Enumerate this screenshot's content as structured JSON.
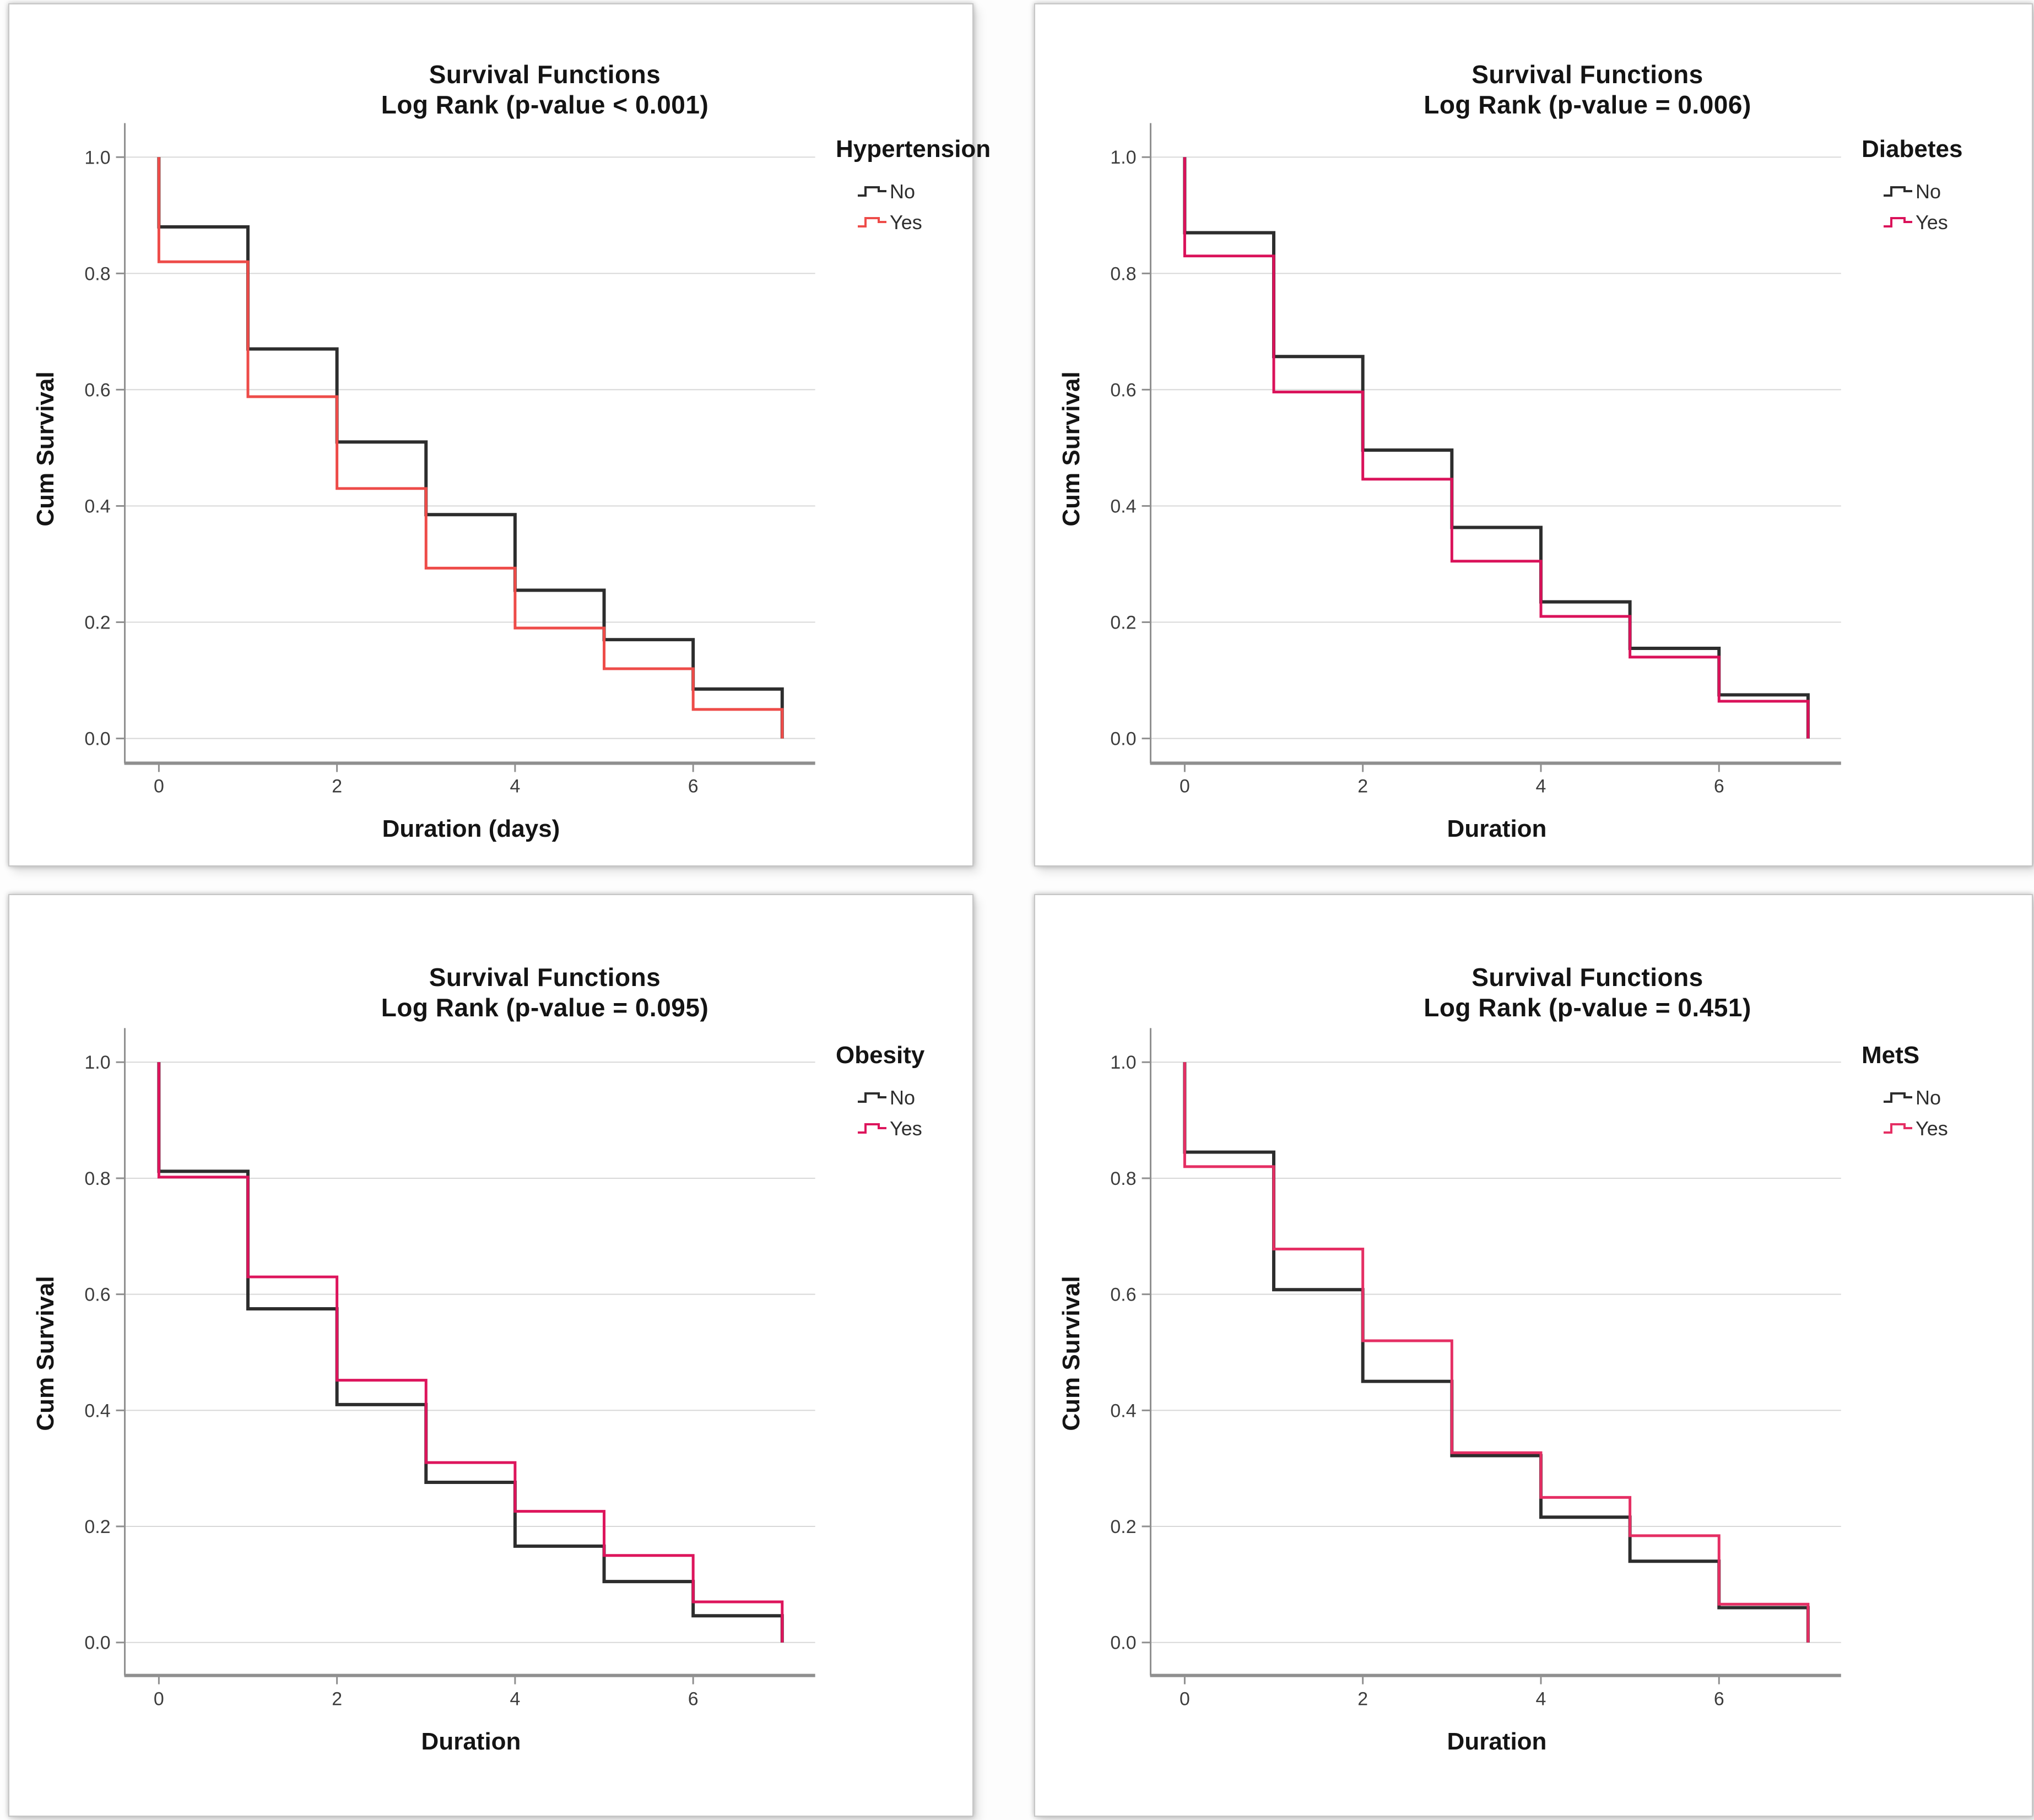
{
  "page": {
    "background": "#ffffff",
    "panel_background": "#ffffff",
    "panel_border_color": "#c6c6c6",
    "grid_line_color": "#d8d8d8",
    "axis_line_color": "#8f8f8f",
    "tick_label_color": "#3d3d3d"
  },
  "chart_data": [
    {
      "type": "line",
      "chart_kind": "kaplan-meier-step",
      "title": "Survival Functions",
      "subtitle": "Log Rank (p-value < 0.001)",
      "p_value_text": "< 0.001",
      "legend_title": "Hypertension",
      "xlabel": "Duration (days)",
      "ylabel": "Cum Survival",
      "x_ticks": [
        0,
        2,
        4,
        6
      ],
      "y_ticks": [
        1.0,
        0.8,
        0.6,
        0.4,
        0.2,
        0.0
      ],
      "xlim": [
        -0.45,
        7.7
      ],
      "ylim": [
        0.0,
        1.06
      ],
      "grid": "horizontal",
      "legend_position": "right",
      "event_times": [
        0,
        1,
        2,
        3,
        4,
        5,
        6,
        7
      ],
      "series": [
        {
          "name": "No",
          "color": "#2d2d2d",
          "start": 1.0,
          "values_after_drop": [
            0.88,
            0.67,
            0.51,
            0.385,
            0.255,
            0.17,
            0.085,
            0.0
          ]
        },
        {
          "name": "Yes",
          "color": "#ee4c49",
          "start": 1.0,
          "values_after_drop": [
            0.82,
            0.588,
            0.43,
            0.293,
            0.19,
            0.12,
            0.05,
            0.0
          ]
        }
      ]
    },
    {
      "type": "line",
      "chart_kind": "kaplan-meier-step",
      "title": "Survival Functions",
      "subtitle": "Log Rank (p-value = 0.006)",
      "p_value_text": "= 0.006",
      "legend_title": "Diabetes",
      "xlabel": "Duration",
      "ylabel": "Cum Survival",
      "x_ticks": [
        0,
        2,
        4,
        6
      ],
      "y_ticks": [
        1.0,
        0.8,
        0.6,
        0.4,
        0.2,
        0.0
      ],
      "xlim": [
        -0.45,
        7.7
      ],
      "ylim": [
        0.0,
        1.06
      ],
      "grid": "horizontal",
      "legend_position": "right",
      "event_times": [
        0,
        1,
        2,
        3,
        4,
        5,
        6,
        7
      ],
      "series": [
        {
          "name": "No",
          "color": "#2d2d2d",
          "start": 1.0,
          "values_after_drop": [
            0.87,
            0.657,
            0.496,
            0.363,
            0.235,
            0.155,
            0.075,
            0.0
          ]
        },
        {
          "name": "Yes",
          "color": "#da125a",
          "start": 1.0,
          "values_after_drop": [
            0.83,
            0.596,
            0.446,
            0.305,
            0.21,
            0.14,
            0.064,
            0.0
          ]
        }
      ]
    },
    {
      "type": "line",
      "chart_kind": "kaplan-meier-step",
      "title": "Survival Functions",
      "subtitle": "Log Rank (p-value = 0.095)",
      "p_value_text": "= 0.095",
      "legend_title": "Obesity",
      "xlabel": "Duration",
      "ylabel": "Cum Survival",
      "x_ticks": [
        0,
        2,
        4,
        6
      ],
      "y_ticks": [
        1.0,
        0.8,
        0.6,
        0.4,
        0.2,
        0.0
      ],
      "xlim": [
        -0.45,
        7.7
      ],
      "ylim": [
        0.0,
        1.06
      ],
      "grid": "horizontal",
      "legend_position": "right",
      "event_times": [
        0,
        1,
        2,
        3,
        4,
        5,
        6,
        7
      ],
      "series": [
        {
          "name": "No",
          "color": "#2d2d2d",
          "start": 1.0,
          "values_after_drop": [
            0.812,
            0.575,
            0.41,
            0.276,
            0.166,
            0.105,
            0.046,
            0.0
          ]
        },
        {
          "name": "Yes",
          "color": "#dd155c",
          "start": 1.0,
          "values_after_drop": [
            0.802,
            0.63,
            0.452,
            0.31,
            0.226,
            0.15,
            0.07,
            0.0
          ]
        }
      ]
    },
    {
      "type": "line",
      "chart_kind": "kaplan-meier-step",
      "title": "Survival Functions",
      "subtitle": "Log Rank (p-value = 0.451)",
      "p_value_text": "= 0.451",
      "legend_title": "MetS",
      "xlabel": "Duration",
      "ylabel": "Cum Survival",
      "x_ticks": [
        0,
        2,
        4,
        6
      ],
      "y_ticks": [
        1.0,
        0.8,
        0.6,
        0.4,
        0.2,
        0.0
      ],
      "xlim": [
        -0.45,
        7.7
      ],
      "ylim": [
        0.0,
        1.06
      ],
      "grid": "horizontal",
      "legend_position": "right",
      "event_times": [
        0,
        1,
        2,
        3,
        4,
        5,
        6,
        7
      ],
      "series": [
        {
          "name": "No",
          "color": "#2d2d2d",
          "start": 1.0,
          "values_after_drop": [
            0.845,
            0.608,
            0.45,
            0.322,
            0.216,
            0.14,
            0.06,
            0.0
          ]
        },
        {
          "name": "Yes",
          "color": "#e52f64",
          "start": 1.0,
          "values_after_drop": [
            0.82,
            0.678,
            0.52,
            0.327,
            0.25,
            0.184,
            0.066,
            0.0
          ]
        }
      ]
    }
  ]
}
